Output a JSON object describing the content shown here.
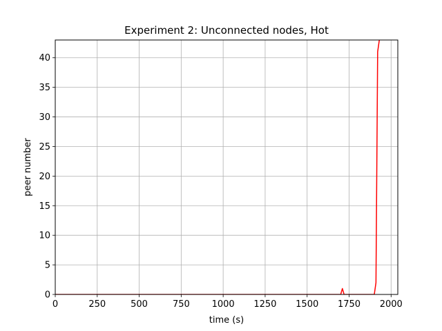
{
  "chart_data": {
    "type": "line",
    "title": "Experiment 2: Unconnected nodes, Hot",
    "xlabel": "time (s)",
    "ylabel": "peer number",
    "xlim": [
      0,
      2040
    ],
    "ylim": [
      0,
      43
    ],
    "xticks": [
      0,
      250,
      500,
      750,
      1000,
      1250,
      1500,
      1750,
      2000
    ],
    "yticks": [
      0,
      5,
      10,
      15,
      20,
      25,
      30,
      35,
      40
    ],
    "xtick_labels": [
      "0",
      "250",
      "500",
      "750",
      "1000",
      "1250",
      "1500",
      "1750",
      "2000"
    ],
    "ytick_labels": [
      "0",
      "5",
      "10",
      "15",
      "20",
      "25",
      "30",
      "35",
      "40"
    ],
    "grid": true,
    "legend": "none",
    "series": [
      {
        "color": "#ff0000",
        "x": [
          0,
          1690,
          1700,
          1710,
          1720,
          1730,
          1890,
          1900,
          1910,
          1920,
          1930
        ],
        "y": [
          0,
          0,
          0,
          1,
          0,
          0,
          0,
          0,
          2,
          41,
          43
        ]
      }
    ]
  }
}
